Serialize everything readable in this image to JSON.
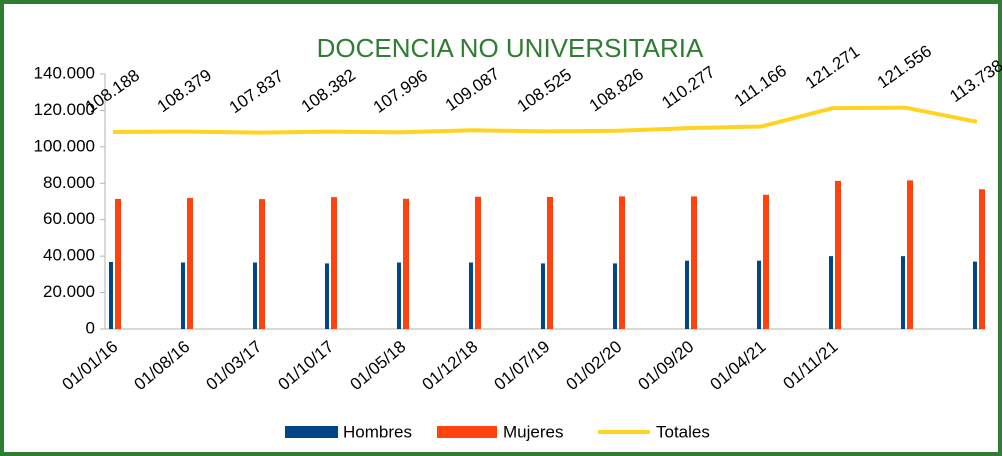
{
  "chart_data": {
    "type": "bar_line",
    "title": "DOCENCIA NO UNIVERSITARIA",
    "categories": [
      "01/01/16",
      "01/08/16",
      "01/03/17",
      "01/10/17",
      "01/05/18",
      "01/12/18",
      "01/07/19",
      "01/02/20",
      "01/09/20",
      "01/04/21",
      "01/11/21",
      null,
      null
    ],
    "series": [
      {
        "name": "Hombres",
        "color": "#004586",
        "type": "bar",
        "values": [
          36800,
          36500,
          36500,
          36000,
          36500,
          36500,
          36000,
          36000,
          37500,
          37500,
          40000,
          40000,
          37000
        ]
      },
      {
        "name": "Mujeres",
        "color": "#ff420e",
        "type": "bar",
        "values": [
          71400,
          71900,
          71300,
          72400,
          71500,
          72600,
          72500,
          72800,
          72800,
          73700,
          81300,
          81600,
          76700
        ]
      },
      {
        "name": "Totales",
        "color": "#ffd320",
        "type": "line",
        "values": [
          108188,
          108379,
          107837,
          108382,
          107996,
          109087,
          108525,
          108826,
          110277,
          111166,
          121271,
          121556,
          113738
        ],
        "value_labels": [
          "108.188",
          "108.379",
          "107.837",
          "108.382",
          "107.996",
          "109.087",
          "108.525",
          "108.826",
          "110.277",
          "111.166",
          "121.271",
          "121.556",
          "113.738"
        ]
      }
    ],
    "ylim": [
      0,
      140000
    ],
    "yticks": [
      0,
      {
        "value": 20000,
        "label": "20.000"
      },
      {
        "value": 40000,
        "label": "40.000"
      },
      {
        "value": 60000,
        "label": "60.000"
      },
      {
        "value": 80000,
        "label": "80.000"
      },
      {
        "value": 100000,
        "label": "100.000"
      },
      {
        "value": 120000,
        "label": "120.000"
      },
      {
        "value": 140000,
        "label": "140.000"
      }
    ],
    "legend": "bottom"
  }
}
